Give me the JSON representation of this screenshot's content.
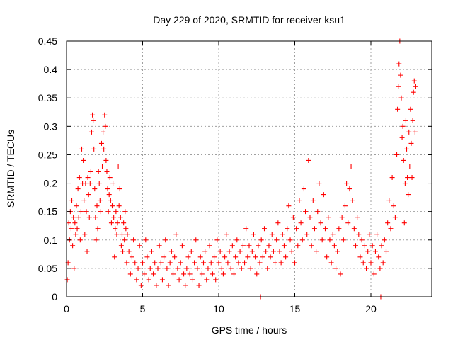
{
  "chart_data": {
    "type": "scatter",
    "title": "Day 229 of 2020, SRMTID for receiver ksu1",
    "xlabel": "GPS time / hours",
    "ylabel": "SRMTID / TECUs",
    "xlim": [
      0,
      24
    ],
    "ylim": [
      0,
      0.45
    ],
    "x_ticks": [
      0,
      5,
      10,
      15,
      20
    ],
    "x_tick_labels": [
      "0",
      "5",
      "10",
      "15",
      "20"
    ],
    "y_ticks": [
      0,
      0.05,
      0.1,
      0.15,
      0.2,
      0.25,
      0.3,
      0.35,
      0.4,
      0.45
    ],
    "y_tick_labels": [
      "0",
      "0.05",
      "0.1",
      "0.15",
      "0.2",
      "0.25",
      "0.3",
      "0.35",
      "0.4",
      "0.45"
    ],
    "grid": true,
    "marker": "+",
    "marker_color": "#ff0000",
    "series": [
      {
        "name": "SRMTID",
        "points": [
          [
            0.05,
            0.03
          ],
          [
            0.1,
            0.06
          ],
          [
            0.15,
            0.13
          ],
          [
            0.2,
            0.1
          ],
          [
            0.25,
            0.15
          ],
          [
            0.3,
            0.12
          ],
          [
            0.35,
            0.17
          ],
          [
            0.4,
            0.09
          ],
          [
            0.45,
            0.14
          ],
          [
            0.5,
            0.05
          ],
          [
            0.55,
            0.13
          ],
          [
            0.6,
            0.11
          ],
          [
            0.65,
            0.16
          ],
          [
            0.7,
            0.12
          ],
          [
            0.75,
            0.19
          ],
          [
            0.8,
            0.14
          ],
          [
            0.85,
            0.21
          ],
          [
            0.9,
            0.1
          ],
          [
            0.95,
            0.15
          ],
          [
            1.0,
            0.26
          ],
          [
            1.05,
            0.2
          ],
          [
            1.1,
            0.24
          ],
          [
            1.15,
            0.17
          ],
          [
            1.2,
            0.11
          ],
          [
            1.25,
            0.2
          ],
          [
            1.3,
            0.15
          ],
          [
            1.35,
            0.08
          ],
          [
            1.4,
            0.21
          ],
          [
            1.45,
            0.18
          ],
          [
            1.5,
            0.14
          ],
          [
            1.55,
            0.2
          ],
          [
            1.6,
            0.22
          ],
          [
            1.65,
            0.29
          ],
          [
            1.7,
            0.32
          ],
          [
            1.75,
            0.31
          ],
          [
            1.8,
            0.26
          ],
          [
            1.85,
            0.19
          ],
          [
            1.9,
            0.14
          ],
          [
            1.95,
            0.1
          ],
          [
            2.0,
            0.16
          ],
          [
            2.05,
            0.12
          ],
          [
            2.1,
            0.22
          ],
          [
            2.15,
            0.2
          ],
          [
            2.2,
            0.17
          ],
          [
            2.25,
            0.15
          ],
          [
            2.3,
            0.27
          ],
          [
            2.35,
            0.23
          ],
          [
            2.4,
            0.29
          ],
          [
            2.45,
            0.26
          ],
          [
            2.5,
            0.32
          ],
          [
            2.55,
            0.3
          ],
          [
            2.6,
            0.24
          ],
          [
            2.65,
            0.22
          ],
          [
            2.7,
            0.19
          ],
          [
            2.75,
            0.15
          ],
          [
            2.8,
            0.18
          ],
          [
            2.85,
            0.21
          ],
          [
            2.9,
            0.17
          ],
          [
            2.95,
            0.13
          ],
          [
            3.0,
            0.16
          ],
          [
            3.05,
            0.2
          ],
          [
            3.1,
            0.14
          ],
          [
            3.15,
            0.07
          ],
          [
            3.2,
            0.12
          ],
          [
            3.25,
            0.15
          ],
          [
            3.3,
            0.11
          ],
          [
            3.35,
            0.13
          ],
          [
            3.4,
            0.23
          ],
          [
            3.45,
            0.16
          ],
          [
            3.5,
            0.19
          ],
          [
            3.55,
            0.14
          ],
          [
            3.6,
            0.09
          ],
          [
            3.65,
            0.11
          ],
          [
            3.7,
            0.08
          ],
          [
            3.75,
            0.13
          ],
          [
            3.8,
            0.1
          ],
          [
            3.85,
            0.15
          ],
          [
            3.9,
            0.12
          ],
          [
            3.95,
            0.06
          ],
          [
            4.0,
            0.11
          ],
          [
            4.1,
            0.08
          ],
          [
            4.2,
            0.04
          ],
          [
            4.3,
            0.07
          ],
          [
            4.4,
            0.1
          ],
          [
            4.5,
            0.06
          ],
          [
            4.6,
            0.03
          ],
          [
            4.7,
            0.05
          ],
          [
            4.8,
            0.09
          ],
          [
            4.9,
            0.02
          ],
          [
            5.0,
            0.06
          ],
          [
            5.1,
            0.04
          ],
          [
            5.2,
            0.1
          ],
          [
            5.3,
            0.07
          ],
          [
            5.4,
            0.03
          ],
          [
            5.5,
            0.05
          ],
          [
            5.6,
            0.08
          ],
          [
            5.7,
            0.04
          ],
          [
            5.8,
            0.06
          ],
          [
            5.9,
            0.02
          ],
          [
            6.0,
            0.05
          ],
          [
            6.1,
            0.09
          ],
          [
            6.2,
            0.06
          ],
          [
            6.3,
            0.03
          ],
          [
            6.4,
            0.07
          ],
          [
            6.5,
            0.1
          ],
          [
            6.6,
            0.05
          ],
          [
            6.7,
            0.02
          ],
          [
            6.8,
            0.06
          ],
          [
            6.9,
            0.08
          ],
          [
            7.0,
            0.04
          ],
          [
            7.1,
            0.07
          ],
          [
            7.2,
            0.11
          ],
          [
            7.3,
            0.05
          ],
          [
            7.4,
            0.03
          ],
          [
            7.5,
            0.06
          ],
          [
            7.6,
            0.09
          ],
          [
            7.7,
            0.04
          ],
          [
            7.8,
            0.02
          ],
          [
            7.9,
            0.05
          ],
          [
            8.0,
            0.07
          ],
          [
            8.1,
            0.04
          ],
          [
            8.2,
            0.08
          ],
          [
            8.3,
            0.03
          ],
          [
            8.4,
            0.06
          ],
          [
            8.5,
            0.1
          ],
          [
            8.6,
            0.05
          ],
          [
            8.7,
            0.02
          ],
          [
            8.8,
            0.07
          ],
          [
            8.9,
            0.04
          ],
          [
            9.0,
            0.06
          ],
          [
            9.1,
            0.08
          ],
          [
            9.2,
            0.03
          ],
          [
            9.3,
            0.05
          ],
          [
            9.4,
            0.09
          ],
          [
            9.5,
            0.06
          ],
          [
            9.6,
            0.04
          ],
          [
            9.7,
            0.07
          ],
          [
            9.8,
            0.03
          ],
          [
            9.9,
            0.1
          ],
          [
            10.0,
            0.06
          ],
          [
            10.1,
            0.08
          ],
          [
            10.2,
            0.05
          ],
          [
            10.3,
            0.04
          ],
          [
            10.4,
            0.07
          ],
          [
            10.5,
            0.11
          ],
          [
            10.6,
            0.06
          ],
          [
            10.7,
            0.08
          ],
          [
            10.8,
            0.05
          ],
          [
            10.9,
            0.09
          ],
          [
            11.0,
            0.04
          ],
          [
            11.1,
            0.07
          ],
          [
            11.2,
            0.1
          ],
          [
            11.3,
            0.06
          ],
          [
            11.4,
            0.08
          ],
          [
            11.5,
            0.05
          ],
          [
            11.6,
            0.09
          ],
          [
            11.7,
            0.06
          ],
          [
            11.8,
            0.12
          ],
          [
            11.9,
            0.07
          ],
          [
            12.0,
            0.09
          ],
          [
            12.1,
            0.05
          ],
          [
            12.2,
            0.08
          ],
          [
            12.3,
            0.11
          ],
          [
            12.4,
            0.07
          ],
          [
            12.5,
            0.04
          ],
          [
            12.6,
            0.09
          ],
          [
            12.7,
            0.06
          ],
          [
            12.75,
            0.0
          ],
          [
            12.8,
            0.1
          ],
          [
            12.9,
            0.07
          ],
          [
            13.0,
            0.12
          ],
          [
            13.1,
            0.08
          ],
          [
            13.2,
            0.05
          ],
          [
            13.3,
            0.09
          ],
          [
            13.4,
            0.07
          ],
          [
            13.5,
            0.11
          ],
          [
            13.6,
            0.08
          ],
          [
            13.7,
            0.06
          ],
          [
            13.8,
            0.1
          ],
          [
            13.9,
            0.13
          ],
          [
            14.0,
            0.08
          ],
          [
            14.1,
            0.06
          ],
          [
            14.2,
            0.11
          ],
          [
            14.3,
            0.09
          ],
          [
            14.4,
            0.07
          ],
          [
            14.5,
            0.12
          ],
          [
            14.6,
            0.16
          ],
          [
            14.7,
            0.1
          ],
          [
            14.8,
            0.08
          ],
          [
            14.9,
            0.14
          ],
          [
            15.0,
            0.06
          ],
          [
            15.1,
            0.12
          ],
          [
            15.2,
            0.09
          ],
          [
            15.3,
            0.17
          ],
          [
            15.4,
            0.13
          ],
          [
            15.5,
            0.1
          ],
          [
            15.6,
            0.19
          ],
          [
            15.7,
            0.15
          ],
          [
            15.8,
            0.11
          ],
          [
            15.9,
            0.24
          ],
          [
            16.0,
            0.14
          ],
          [
            16.1,
            0.09
          ],
          [
            16.2,
            0.17
          ],
          [
            16.3,
            0.12
          ],
          [
            16.4,
            0.08
          ],
          [
            16.5,
            0.15
          ],
          [
            16.6,
            0.2
          ],
          [
            16.7,
            0.13
          ],
          [
            16.8,
            0.1
          ],
          [
            16.9,
            0.18
          ],
          [
            17.0,
            0.12
          ],
          [
            17.1,
            0.07
          ],
          [
            17.2,
            0.14
          ],
          [
            17.3,
            0.1
          ],
          [
            17.4,
            0.06
          ],
          [
            17.5,
            0.11
          ],
          [
            17.6,
            0.09
          ],
          [
            17.7,
            0.05
          ],
          [
            17.8,
            0.08
          ],
          [
            17.9,
            0.12
          ],
          [
            18.0,
            0.04
          ],
          [
            18.1,
            0.14
          ],
          [
            18.2,
            0.1
          ],
          [
            18.3,
            0.16
          ],
          [
            18.4,
            0.2
          ],
          [
            18.5,
            0.13
          ],
          [
            18.6,
            0.19
          ],
          [
            18.7,
            0.23
          ],
          [
            18.8,
            0.17
          ],
          [
            18.9,
            0.12
          ],
          [
            19.0,
            0.09
          ],
          [
            19.1,
            0.14
          ],
          [
            19.2,
            0.11
          ],
          [
            19.3,
            0.07
          ],
          [
            19.4,
            0.1
          ],
          [
            19.5,
            0.06
          ],
          [
            19.6,
            0.09
          ],
          [
            19.7,
            0.05
          ],
          [
            19.8,
            0.08
          ],
          [
            19.9,
            0.11
          ],
          [
            20.0,
            0.06
          ],
          [
            20.1,
            0.09
          ],
          [
            20.2,
            0.04
          ],
          [
            20.3,
            0.08
          ],
          [
            20.4,
            0.11
          ],
          [
            20.5,
            0.07
          ],
          [
            20.6,
            0.05
          ],
          [
            20.65,
            0.0
          ],
          [
            20.7,
            0.09
          ],
          [
            20.8,
            0.06
          ],
          [
            20.9,
            0.1
          ],
          [
            21.0,
            0.08
          ],
          [
            21.1,
            0.13
          ],
          [
            21.2,
            0.17
          ],
          [
            21.3,
            0.12
          ],
          [
            21.4,
            0.21
          ],
          [
            21.5,
            0.16
          ],
          [
            21.6,
            0.14
          ],
          [
            21.7,
            0.25
          ],
          [
            21.75,
            0.33
          ],
          [
            21.8,
            0.37
          ],
          [
            21.85,
            0.41
          ],
          [
            21.9,
            0.45
          ],
          [
            21.95,
            0.39
          ],
          [
            22.0,
            0.35
          ],
          [
            22.05,
            0.28
          ],
          [
            22.1,
            0.3
          ],
          [
            22.15,
            0.24
          ],
          [
            22.2,
            0.13
          ],
          [
            22.25,
            0.2
          ],
          [
            22.3,
            0.31
          ],
          [
            22.35,
            0.26
          ],
          [
            22.4,
            0.21
          ],
          [
            22.45,
            0.18
          ],
          [
            22.5,
            0.29
          ],
          [
            22.55,
            0.23
          ],
          [
            22.6,
            0.33
          ],
          [
            22.65,
            0.27
          ],
          [
            22.7,
            0.21
          ],
          [
            22.75,
            0.31
          ],
          [
            22.8,
            0.36
          ],
          [
            22.85,
            0.38
          ],
          [
            22.9,
            0.29
          ],
          [
            22.95,
            0.37
          ]
        ]
      }
    ]
  }
}
